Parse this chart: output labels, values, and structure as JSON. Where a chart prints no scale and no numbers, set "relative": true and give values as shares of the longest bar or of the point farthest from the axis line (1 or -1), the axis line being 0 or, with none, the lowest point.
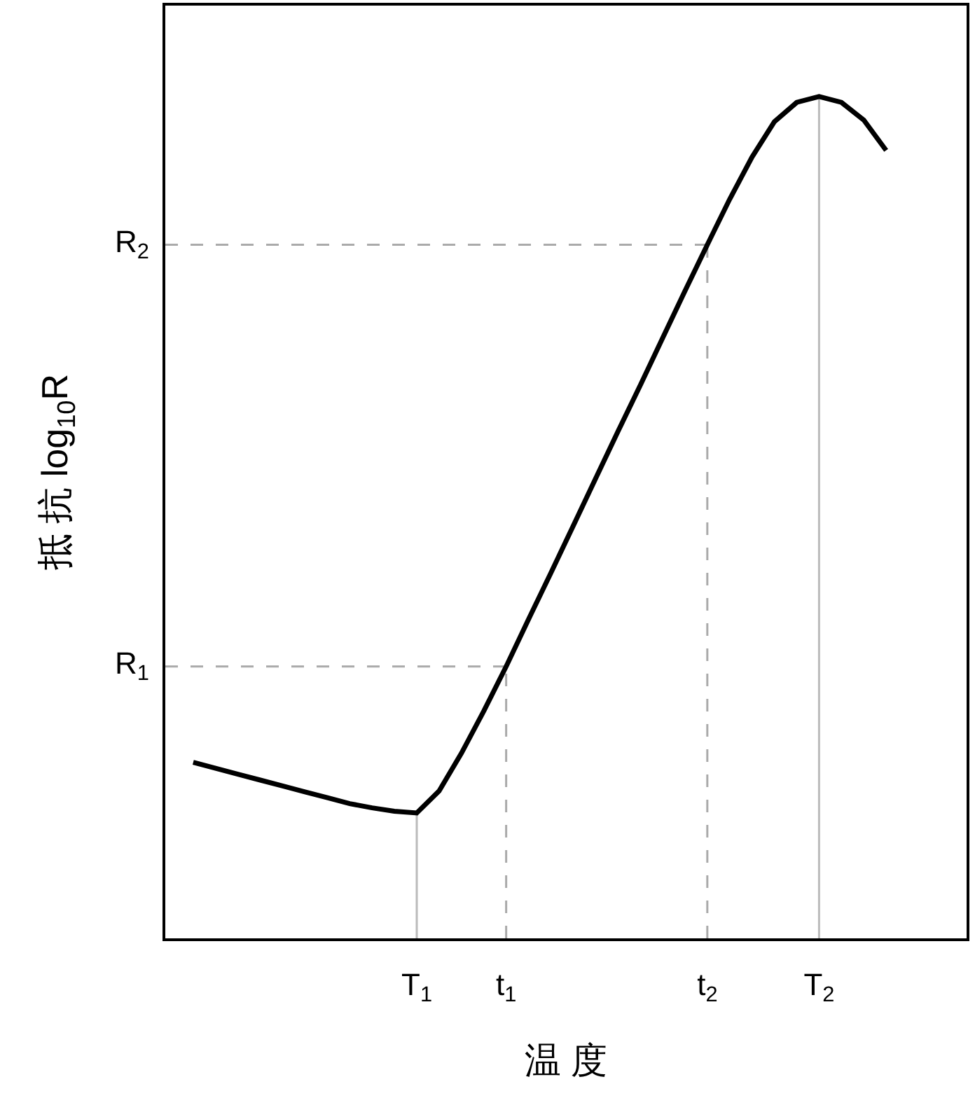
{
  "chart_data": {
    "type": "line",
    "relative": true,
    "xlabel": "温 度",
    "ylabel": "抵 抗 log$_{10}$R",
    "categories": [
      null,
      null,
      null,
      null,
      null,
      null,
      null,
      null,
      null,
      null,
      "T$_{1}$",
      null,
      null,
      null,
      "t$_{1}$",
      null,
      null,
      null,
      null,
      null,
      null,
      null,
      null,
      "t$_{2}$",
      null,
      null,
      null,
      null,
      "T$_{2}$",
      null,
      null,
      null
    ],
    "series": [
      {
        "color": "#000000",
        "values": [
          0.209,
          0.202,
          0.195,
          0.188,
          0.181,
          0.174,
          0.167,
          0.16,
          0.155,
          0.151,
          0.149,
          0.175,
          0.22,
          0.27,
          0.323,
          0.379,
          0.434,
          0.49,
          0.546,
          0.602,
          0.657,
          0.713,
          0.769,
          0.824,
          0.878,
          0.928,
          0.97,
          0.993,
          1,
          0.993,
          0.972,
          0.936
        ]
      }
    ],
    "ref_lines": [
      {
        "axis": "x",
        "value": "T$_{1}$",
        "color": "#bbbbbb",
        "line_style": "solid"
      },
      {
        "axis": "x",
        "value": "t$_{1}$",
        "color": "#aaaaaa",
        "line_style": "dashed"
      },
      {
        "axis": "x",
        "value": "t$_{2}$",
        "color": "#aaaaaa",
        "line_style": "dashed"
      },
      {
        "axis": "x",
        "value": "T$_{2}$",
        "color": "#bbbbbb",
        "line_style": "solid"
      },
      {
        "axis": "y",
        "value": 0.323,
        "label": "R$_{1}$",
        "color": "#aaaaaa",
        "line_style": "dashed"
      },
      {
        "axis": "y",
        "value": 0.824,
        "label": "R$_{2}$",
        "color": "#aaaaaa",
        "line_style": "dashed"
      }
    ],
    "grid": false,
    "marker": "none",
    "line_style": "solid"
  }
}
